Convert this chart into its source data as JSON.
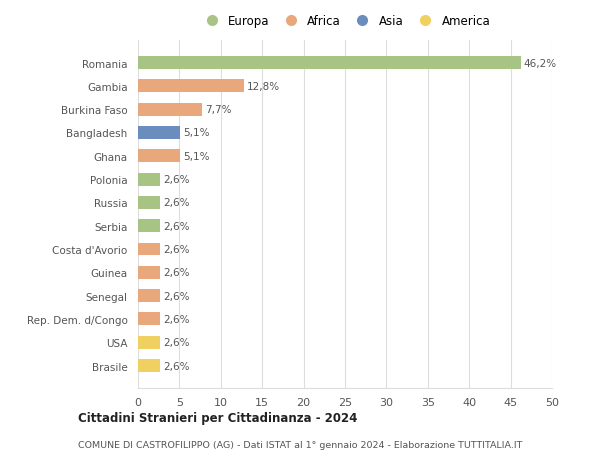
{
  "countries": [
    "Romania",
    "Gambia",
    "Burkina Faso",
    "Bangladesh",
    "Ghana",
    "Polonia",
    "Russia",
    "Serbia",
    "Costa d'Avorio",
    "Guinea",
    "Senegal",
    "Rep. Dem. d/Congo",
    "USA",
    "Brasile"
  ],
  "values": [
    46.2,
    12.8,
    7.7,
    5.1,
    5.1,
    2.6,
    2.6,
    2.6,
    2.6,
    2.6,
    2.6,
    2.6,
    2.6,
    2.6
  ],
  "labels": [
    "46,2%",
    "12,8%",
    "7,7%",
    "5,1%",
    "5,1%",
    "2,6%",
    "2,6%",
    "2,6%",
    "2,6%",
    "2,6%",
    "2,6%",
    "2,6%",
    "2,6%",
    "2,6%"
  ],
  "colors": [
    "#a8c484",
    "#e8a87c",
    "#e8a87c",
    "#6b8cbf",
    "#e8a87c",
    "#a8c484",
    "#a8c484",
    "#a8c484",
    "#e8a87c",
    "#e8a87c",
    "#e8a87c",
    "#e8a87c",
    "#f0d060",
    "#f0d060"
  ],
  "legend_labels": [
    "Europa",
    "Africa",
    "Asia",
    "America"
  ],
  "legend_colors": [
    "#a8c484",
    "#e8a87c",
    "#6b8cbf",
    "#f0d060"
  ],
  "xlim": [
    0,
    50
  ],
  "xticks": [
    0,
    5,
    10,
    15,
    20,
    25,
    30,
    35,
    40,
    45,
    50
  ],
  "title": "Cittadini Stranieri per Cittadinanza - 2024",
  "subtitle": "COMUNE DI CASTROFILIPPO (AG) - Dati ISTAT al 1° gennaio 2024 - Elaborazione TUTTITALIA.IT",
  "bg_color": "#ffffff",
  "grid_color": "#dddddd",
  "label_color": "#555555",
  "ytick_color": "#555555"
}
